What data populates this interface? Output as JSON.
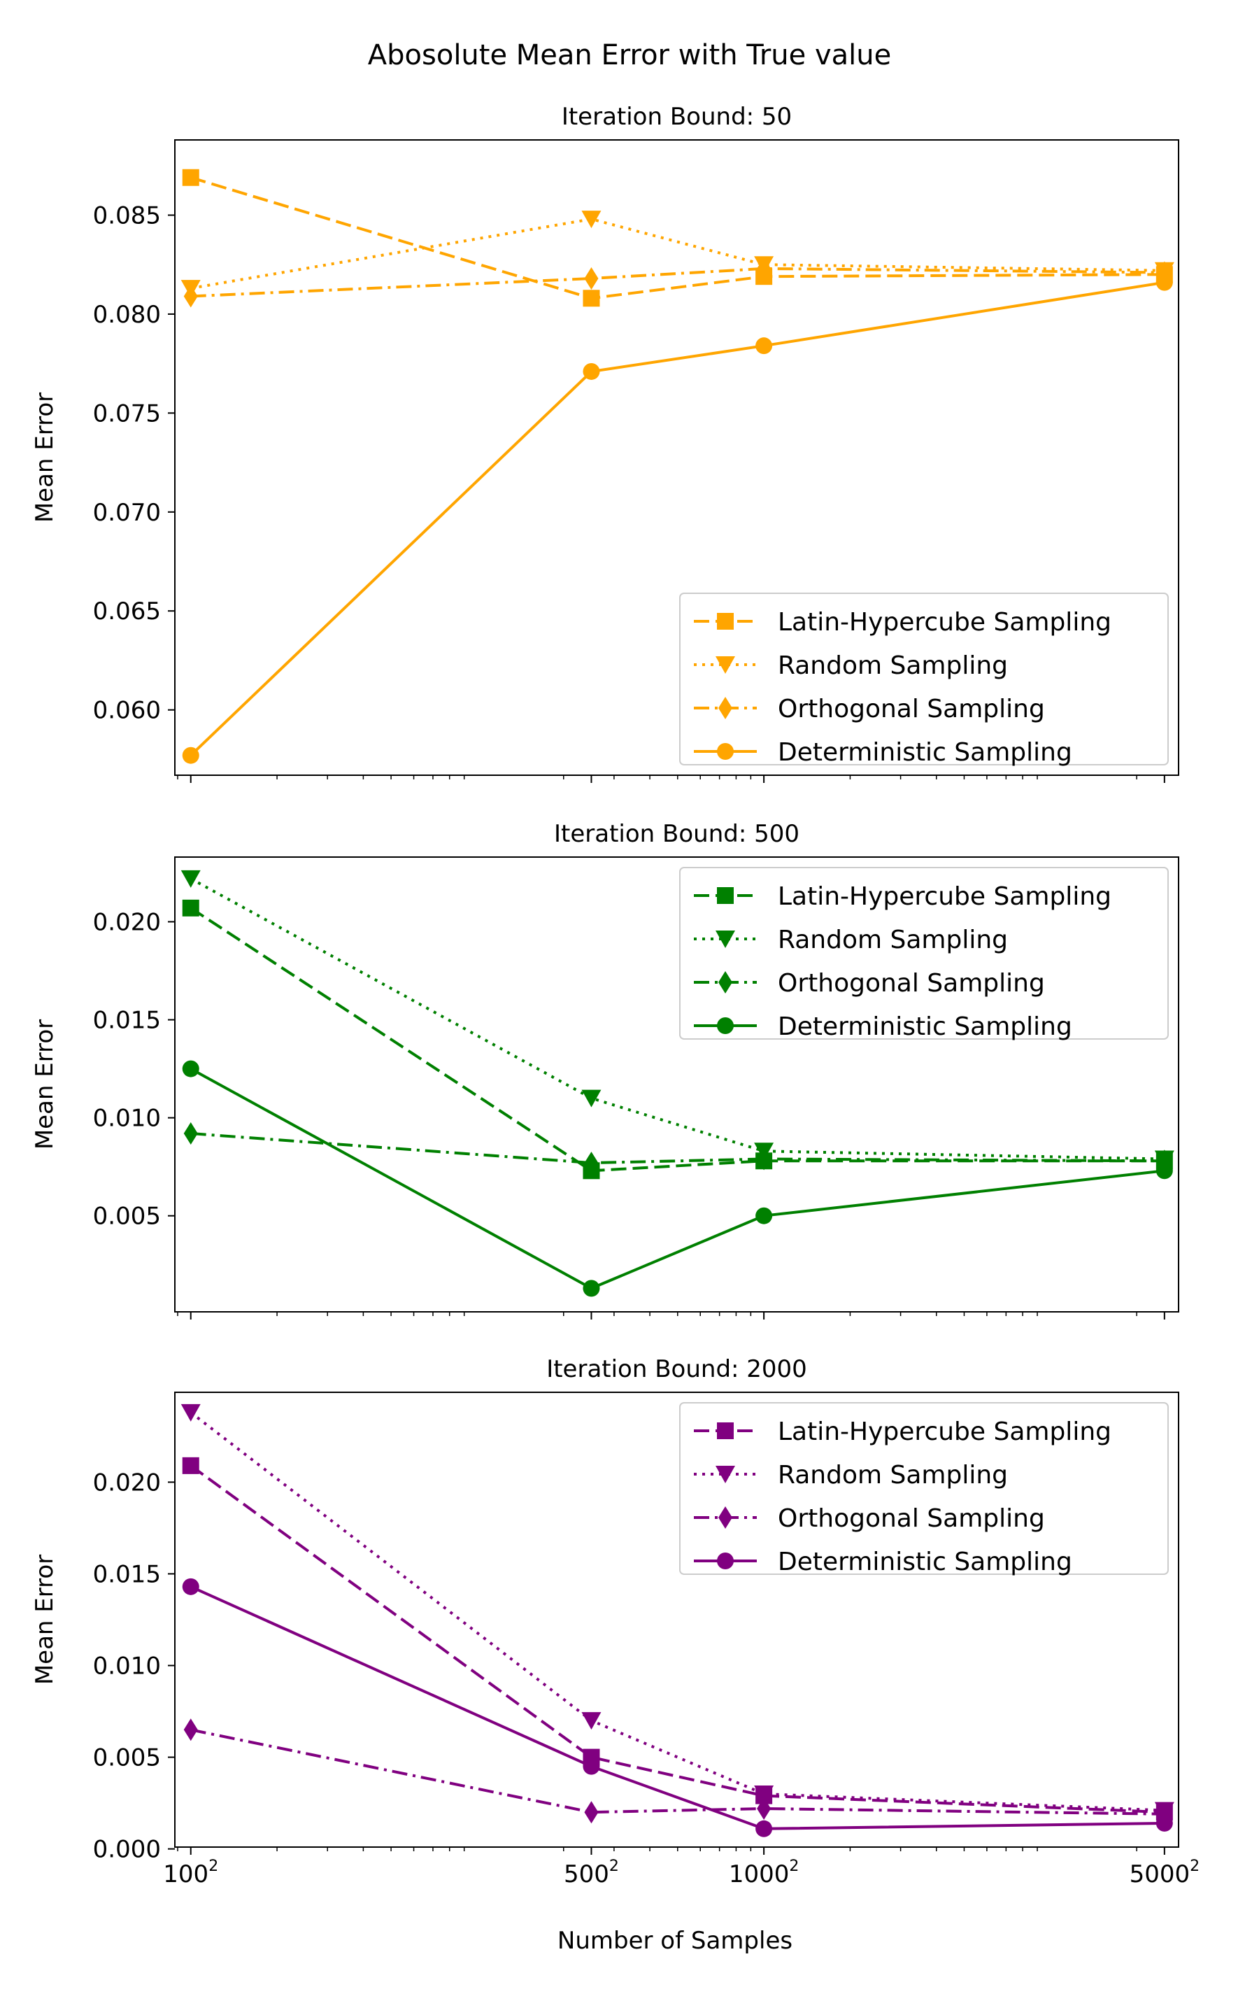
{
  "figure": {
    "suptitle": "Abosolute Mean Error with True value",
    "xlabel": "Number of Samples"
  },
  "chart_data": [
    {
      "type": "line",
      "title": "Iteration Bound: 50",
      "ylabel": "Mean Error",
      "xscale": "log",
      "x": [
        10000,
        250000,
        1000000,
        25000000
      ],
      "xtick_bases": [
        "100",
        "500",
        "1000",
        "5000"
      ],
      "xtick_exponent": "2",
      "xlim": [
        8800,
        28000000
      ],
      "ylim": [
        0.0567,
        0.0888
      ],
      "yticks": [
        "0.060",
        "0.065",
        "0.070",
        "0.075",
        "0.080",
        "0.085"
      ],
      "ytick_values": [
        0.06,
        0.065,
        0.07,
        0.075,
        0.08,
        0.085
      ],
      "color": "#FFA500",
      "legend_position": "lower-right",
      "series": [
        {
          "name": "Latin-Hypercube Sampling",
          "marker": "square",
          "dash": "dashed",
          "values": [
            0.0869,
            0.0808,
            0.0819,
            0.082
          ]
        },
        {
          "name": "Random Sampling",
          "marker": "triangle-down",
          "dash": "dotted",
          "values": [
            0.0813,
            0.0848,
            0.0825,
            0.0822
          ]
        },
        {
          "name": "Orthogonal Sampling",
          "marker": "thin-diamond",
          "dash": "dashdot",
          "values": [
            0.0809,
            0.0818,
            0.0823,
            0.0821
          ]
        },
        {
          "name": "Deterministic Sampling",
          "marker": "circle",
          "dash": "solid",
          "values": [
            0.0577,
            0.0771,
            0.0784,
            0.0816
          ]
        }
      ]
    },
    {
      "type": "line",
      "title": "Iteration Bound: 500",
      "ylabel": "Mean Error",
      "xscale": "log",
      "x": [
        10000,
        250000,
        1000000,
        25000000
      ],
      "xtick_bases": [
        "100",
        "500",
        "1000",
        "5000"
      ],
      "xtick_exponent": "2",
      "xlim": [
        8800,
        28000000
      ],
      "ylim": [
        0.0001,
        0.0233
      ],
      "yticks": [
        "0.005",
        "0.010",
        "0.015",
        "0.020"
      ],
      "ytick_values": [
        0.005,
        0.01,
        0.015,
        0.02
      ],
      "color": "#008000",
      "legend_position": "upper-right",
      "series": [
        {
          "name": "Latin-Hypercube Sampling",
          "marker": "square",
          "dash": "dashed",
          "values": [
            0.0207,
            0.0073,
            0.0078,
            0.0078
          ]
        },
        {
          "name": "Random Sampling",
          "marker": "triangle-down",
          "dash": "dotted",
          "values": [
            0.0222,
            0.011,
            0.0083,
            0.0079
          ]
        },
        {
          "name": "Orthogonal Sampling",
          "marker": "thin-diamond",
          "dash": "dashdot",
          "values": [
            0.0092,
            0.0077,
            0.0079,
            0.0078
          ]
        },
        {
          "name": "Deterministic Sampling",
          "marker": "circle",
          "dash": "solid",
          "values": [
            0.0125,
            0.0013,
            0.005,
            0.0073
          ]
        }
      ]
    },
    {
      "type": "line",
      "title": "Iteration Bound: 2000",
      "ylabel": "Mean Error",
      "xscale": "log",
      "x": [
        10000,
        250000,
        1000000,
        25000000
      ],
      "xtick_bases": [
        "100",
        "500",
        "1000",
        "5000"
      ],
      "xtick_exponent": "2",
      "xlim": [
        8800,
        28000000
      ],
      "ylim": [
        0.0001,
        0.0249
      ],
      "yticks": [
        "0.000",
        "0.005",
        "0.010",
        "0.015",
        "0.020"
      ],
      "ytick_values": [
        0.0,
        0.005,
        0.01,
        0.015,
        0.02
      ],
      "color": "#800080",
      "legend_position": "upper-right",
      "series": [
        {
          "name": "Latin-Hypercube Sampling",
          "marker": "square",
          "dash": "dashed",
          "values": [
            0.0209,
            0.005,
            0.0029,
            0.002
          ]
        },
        {
          "name": "Random Sampling",
          "marker": "triangle-down",
          "dash": "dotted",
          "values": [
            0.0238,
            0.007,
            0.003,
            0.0021
          ]
        },
        {
          "name": "Orthogonal Sampling",
          "marker": "thin-diamond",
          "dash": "dashdot",
          "values": [
            0.0065,
            0.002,
            0.0022,
            0.0019
          ]
        },
        {
          "name": "Deterministic Sampling",
          "marker": "circle",
          "dash": "solid",
          "values": [
            0.0143,
            0.0045,
            0.0011,
            0.0014
          ]
        }
      ]
    }
  ]
}
